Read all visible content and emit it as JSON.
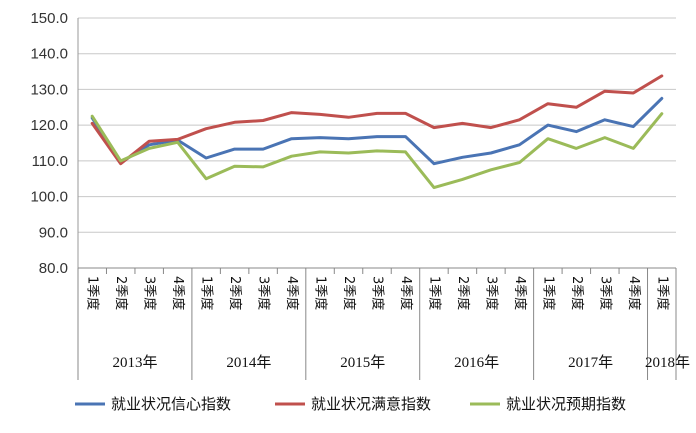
{
  "chart_data": {
    "type": "line",
    "title": "",
    "xlabel": "",
    "ylabel": "",
    "ylim": [
      80,
      150
    ],
    "yticks": [
      "80.0",
      "90.0",
      "100.0",
      "110.0",
      "120.0",
      "130.0",
      "140.0",
      "150.0"
    ],
    "grid": true,
    "legend_position": "bottom",
    "groups": [
      {
        "label": "2013年",
        "quarters": [
          "1季度",
          "2季度",
          "3季度",
          "4季度"
        ]
      },
      {
        "label": "2014年",
        "quarters": [
          "1季度",
          "2季度",
          "3季度",
          "4季度"
        ]
      },
      {
        "label": "2015年",
        "quarters": [
          "1季度",
          "2季度",
          "3季度",
          "4季度"
        ]
      },
      {
        "label": "2016年",
        "quarters": [
          "1季度",
          "2季度",
          "3季度",
          "4季度"
        ]
      },
      {
        "label": "2017年",
        "quarters": [
          "1季度",
          "2季度",
          "3季度",
          "4季度"
        ]
      },
      {
        "label": "2018年",
        "quarters": [
          "1季度"
        ]
      }
    ],
    "series": [
      {
        "name": "就业状况信心指数",
        "color": "#4a74b4",
        "values": [
          122.0,
          109.5,
          114.5,
          115.8,
          110.8,
          113.3,
          113.3,
          116.2,
          116.5,
          116.2,
          116.8,
          116.8,
          109.2,
          111.0,
          112.2,
          114.5,
          120.0,
          118.2,
          121.5,
          119.6,
          127.5
        ]
      },
      {
        "name": "就业状况满意指数",
        "color": "#c0504d",
        "values": [
          120.5,
          109.2,
          115.5,
          116.0,
          119.0,
          120.8,
          121.3,
          123.5,
          123.0,
          122.2,
          123.3,
          123.3,
          119.3,
          120.5,
          119.3,
          121.5,
          126.0,
          125.0,
          129.5,
          129.0,
          133.8
        ]
      },
      {
        "name": "就业状况预期指数",
        "color": "#9bbb59",
        "values": [
          122.5,
          110.0,
          113.5,
          115.2,
          105.0,
          108.5,
          108.3,
          111.3,
          112.5,
          112.2,
          112.8,
          112.5,
          102.5,
          104.8,
          107.5,
          109.5,
          116.2,
          113.5,
          116.5,
          113.5,
          123.2
        ]
      }
    ]
  }
}
